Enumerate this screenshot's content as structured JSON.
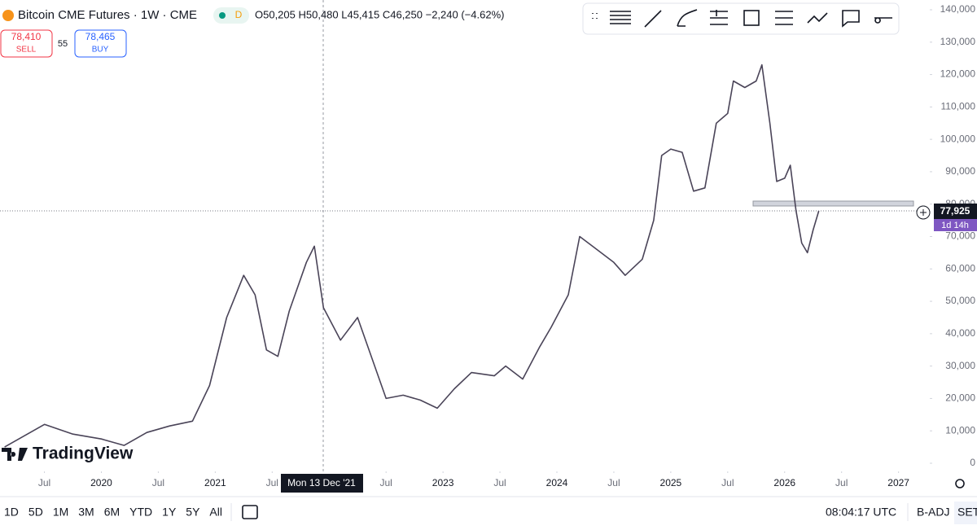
{
  "header": {
    "symbol": "Bitcoin CME Futures · 1W · CME",
    "badge": "D",
    "ohlc": "O50,205 H50,480 L45,415 C46,250 −2,240 (−4.62%)"
  },
  "trade": {
    "sell_price": "78,410",
    "sell": "SELL",
    "spread": "55",
    "buy_price": "78,465",
    "buy": "BUY"
  },
  "price_tag": {
    "price": "77,925",
    "countdown": "1d 14h"
  },
  "crosshair_label": "Mon 13 Dec '21",
  "watermark": "TradingView",
  "chart_data": {
    "type": "line",
    "series": [
      {
        "name": "Bitcoin CME Futures",
        "color": "#4a4458",
        "values": [
          5000,
          12000,
          9000,
          7500,
          5500,
          9500,
          11500,
          13000,
          24000,
          45000,
          58000,
          52000,
          35000,
          33000,
          47000,
          62000,
          67000,
          48000,
          38000,
          45000,
          30000,
          20000,
          21000,
          19500,
          17000,
          23000,
          28000,
          27000,
          30000,
          26000,
          36000,
          42000,
          52000,
          70000,
          66000,
          62000,
          58000,
          63000,
          75000,
          95000,
          97000,
          96000,
          84000,
          85000,
          105000,
          108000,
          118000,
          116000,
          118000,
          123000,
          105000,
          87000,
          88000,
          92000,
          78000,
          68000,
          65000,
          72000,
          77925
        ]
      }
    ],
    "x": [
      2019.15,
      2019.5,
      2019.75,
      2020.0,
      2020.2,
      2020.4,
      2020.6,
      2020.8,
      2020.95,
      2021.1,
      2021.25,
      2021.35,
      2021.45,
      2021.55,
      2021.65,
      2021.8,
      2021.87,
      2021.95,
      2022.1,
      2022.25,
      2022.4,
      2022.5,
      2022.65,
      2022.8,
      2022.95,
      2023.1,
      2023.25,
      2023.45,
      2023.55,
      2023.7,
      2023.85,
      2023.95,
      2024.1,
      2024.2,
      2024.35,
      2024.5,
      2024.6,
      2024.75,
      2024.85,
      2024.92,
      2025.0,
      2025.1,
      2025.2,
      2025.3,
      2025.4,
      2025.5,
      2025.55,
      2025.65,
      2025.75,
      2025.8,
      2025.87,
      2025.93,
      2026.0,
      2026.05,
      2026.1,
      2026.15,
      2026.2,
      2026.25,
      2026.3
    ],
    "xlim": [
      2019.11,
      2027.26
    ],
    "xticks": [
      {
        "value": 2019.5,
        "label": "Jul"
      },
      2020,
      {
        "value": 2020.5,
        "label": "Jul"
      },
      2021,
      {
        "value": 2021.5,
        "label": "Jul"
      },
      {
        "value": 2022.5,
        "label": "Jul"
      },
      2023,
      {
        "value": 2023.5,
        "label": "Jul"
      },
      2024,
      {
        "value": 2024.5,
        "label": "Jul"
      },
      2025,
      {
        "value": 2025.5,
        "label": "Jul"
      },
      2026,
      {
        "value": 2026.5,
        "label": "Jul"
      },
      2027
    ],
    "ylim": [
      0,
      140000
    ],
    "yticks": [
      0,
      {
        "value": 10000,
        "label": "10,000"
      },
      {
        "value": 20000,
        "label": "20,000"
      },
      {
        "value": 30000,
        "label": "30,000"
      },
      {
        "value": 40000,
        "label": "40,000"
      },
      {
        "value": 50000,
        "label": "50,000"
      },
      {
        "value": 60000,
        "label": "60,000"
      },
      {
        "value": 70000,
        "label": "70,000"
      },
      {
        "value": 80000,
        "label": "80,000"
      },
      {
        "value": 90000,
        "label": "90,000"
      },
      {
        "value": 100000,
        "label": "100,000"
      },
      {
        "value": 110000,
        "label": "110,000"
      },
      {
        "value": 120000,
        "label": "120,000"
      },
      {
        "value": 130000,
        "label": "130,000"
      },
      {
        "value": 140000,
        "label": "140,000"
      }
    ]
  },
  "toolbar": {
    "ranges": [
      "1D",
      "5D",
      "1M",
      "3M",
      "6M",
      "YTD",
      "1Y",
      "5Y",
      "All"
    ],
    "clock": "08:04:17 UTC",
    "adj": "B-ADJ",
    "set": "SET"
  }
}
